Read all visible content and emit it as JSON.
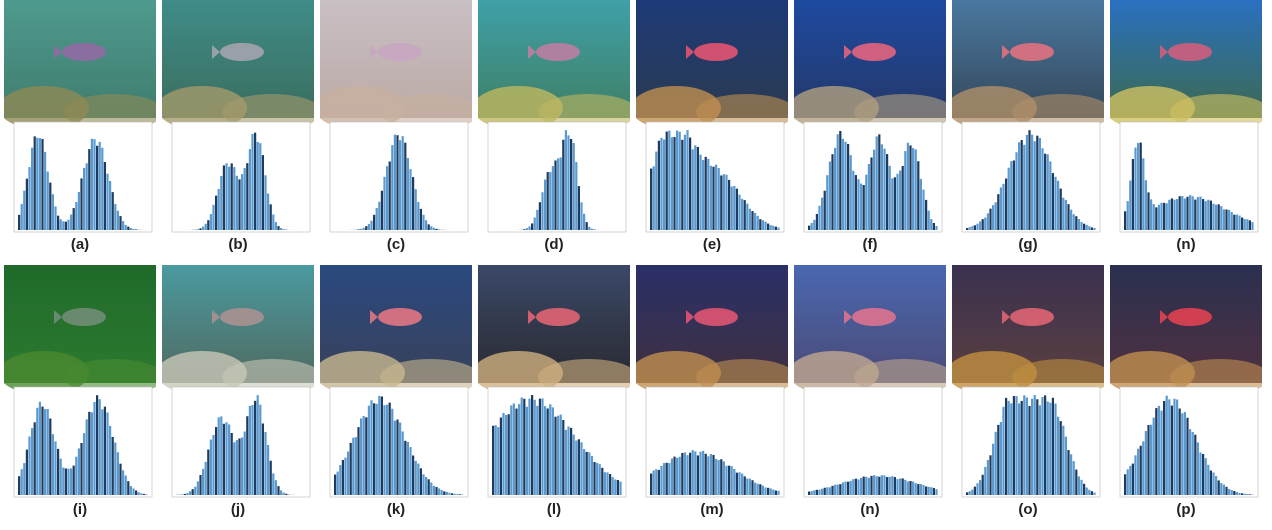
{
  "panels": [
    {
      "label": "(a)"
    },
    {
      "label": "(b)"
    },
    {
      "label": "(c)"
    },
    {
      "label": "(d)"
    },
    {
      "label": "(e)"
    },
    {
      "label": "(f)"
    },
    {
      "label": "(g)"
    },
    {
      "label": "(n)"
    },
    {
      "label": "(i)"
    },
    {
      "label": "(j)"
    },
    {
      "label": "(k)"
    },
    {
      "label": "(l)"
    },
    {
      "label": "(m)"
    },
    {
      "label": "(n)"
    },
    {
      "label": "(o)"
    },
    {
      "label": "(p)"
    }
  ]
}
